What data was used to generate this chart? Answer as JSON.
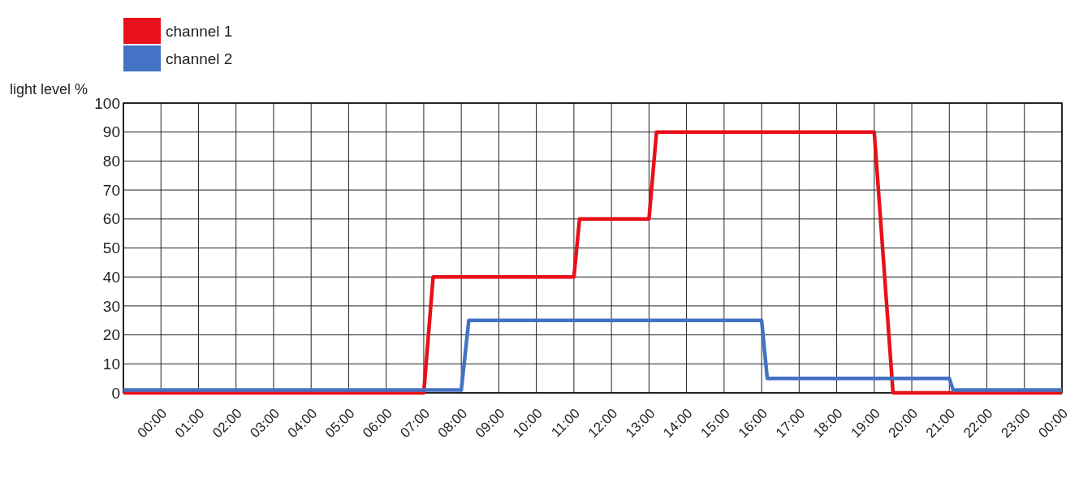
{
  "chart_data": {
    "type": "line",
    "ylabel": "light level %",
    "x": [
      -1,
      7,
      7.25,
      11,
      11.15,
      13,
      13.2,
      19,
      19.5,
      24
    ],
    "series": [
      {
        "name": "channel 1",
        "color": "#e8101a",
        "values": [
          0,
          0,
          40,
          40,
          60,
          60,
          90,
          90,
          0,
          0
        ]
      },
      {
        "name": "channel 2",
        "color": "#4472c4",
        "x": [
          -1,
          8,
          8.2,
          16,
          16.15,
          21,
          21.1,
          24
        ],
        "values": [
          1,
          1,
          25,
          25,
          5,
          5,
          1,
          1
        ]
      }
    ],
    "xlim": [
      -1,
      24
    ],
    "xticks": [
      {
        "value": 0,
        "label": "00:00"
      },
      {
        "value": 1,
        "label": "01:00"
      },
      {
        "value": 2,
        "label": "02:00"
      },
      {
        "value": 3,
        "label": "03:00"
      },
      {
        "value": 4,
        "label": "04:00"
      },
      {
        "value": 5,
        "label": "05:00"
      },
      {
        "value": 6,
        "label": "06:00"
      },
      {
        "value": 7,
        "label": "07:00"
      },
      {
        "value": 8,
        "label": "08:00"
      },
      {
        "value": 9,
        "label": "09:00"
      },
      {
        "value": 10,
        "label": "10:00"
      },
      {
        "value": 11,
        "label": "11:00"
      },
      {
        "value": 12,
        "label": "12:00"
      },
      {
        "value": 13,
        "label": "13:00"
      },
      {
        "value": 14,
        "label": "14:00"
      },
      {
        "value": 15,
        "label": "15:00"
      },
      {
        "value": 16,
        "label": "16:00"
      },
      {
        "value": 17,
        "label": "17:00"
      },
      {
        "value": 18,
        "label": "18:00"
      },
      {
        "value": 19,
        "label": "19:00"
      },
      {
        "value": 20,
        "label": "20:00"
      },
      {
        "value": 21,
        "label": "21:00"
      },
      {
        "value": 22,
        "label": "22:00"
      },
      {
        "value": 23,
        "label": "23:00"
      },
      {
        "value": 24,
        "label": "00:00"
      }
    ],
    "ylim": [
      0,
      100
    ],
    "yticks": [
      0,
      10,
      20,
      30,
      40,
      50,
      60,
      70,
      80,
      90,
      100
    ],
    "grid": true,
    "legend": "top left",
    "marker": "none",
    "line_style": "solid"
  }
}
